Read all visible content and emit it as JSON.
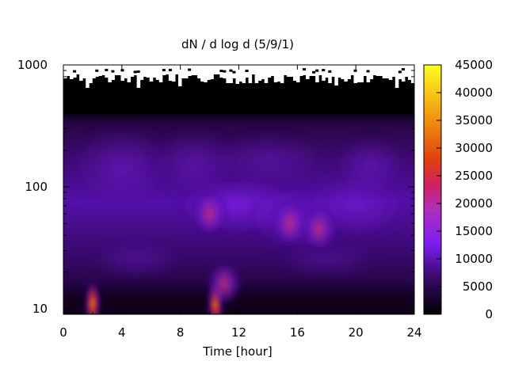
{
  "chart_data": {
    "type": "heatmap",
    "title": "dN / d log d (5/9/1)",
    "xlabel": "Time [hour]",
    "ylabel": "",
    "xlim": [
      0,
      24
    ],
    "ylim": [
      9,
      1000
    ],
    "y_scale": "log",
    "x_ticks": [
      "0",
      "4",
      "8",
      "12",
      "16",
      "20",
      "24"
    ],
    "y_ticks": [
      "10",
      "100",
      "1000"
    ],
    "colorbar": {
      "range": [
        0,
        45000
      ],
      "ticks": [
        "0",
        "5000",
        "10000",
        "15000",
        "20000",
        "25000",
        "30000",
        "35000",
        "40000",
        "45000"
      ],
      "palette": "black-purple-red-yellow"
    },
    "features": [
      {
        "time": 2.0,
        "diameter": 11,
        "value": 33000
      },
      {
        "time": 10.4,
        "diameter": 11,
        "value": 26000
      },
      {
        "time": 11.0,
        "diameter": 16,
        "value": 14000
      },
      {
        "time": 10.0,
        "diameter": 60,
        "value": 12000
      },
      {
        "time": 15.5,
        "diameter": 50,
        "value": 9000
      },
      {
        "time": 17.5,
        "diameter": 45,
        "value": 10000
      }
    ],
    "grid": false,
    "legend": "colorbar-right"
  }
}
